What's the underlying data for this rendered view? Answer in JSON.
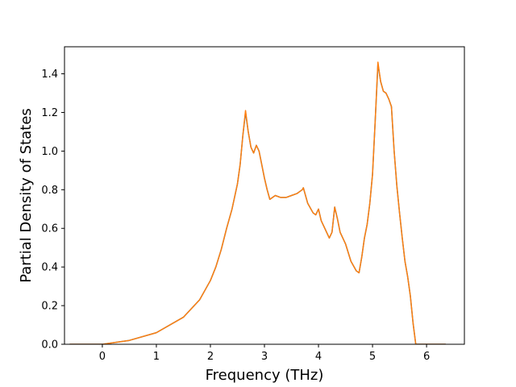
{
  "chart_data": {
    "type": "line",
    "title": "",
    "xlabel": "Frequency (THz)",
    "ylabel": "Partial Density of States",
    "xlim": [
      -0.7,
      6.7
    ],
    "ylim": [
      0.0,
      1.54
    ],
    "x_ticks": [
      "0",
      "1",
      "2",
      "3",
      "4",
      "5",
      "6"
    ],
    "y_ticks": [
      "0.0",
      "0.2",
      "0.4",
      "0.6",
      "0.8",
      "1.0",
      "1.2",
      "1.4"
    ],
    "grid": false,
    "legend": "none",
    "series": [
      {
        "color": "#1f77b4",
        "x": [
          -0.6,
          0.0,
          0.5,
          1.0,
          1.5,
          1.8,
          2.0,
          2.1,
          2.2,
          2.3,
          2.4,
          2.5,
          2.55,
          2.6,
          2.65,
          2.7,
          2.75,
          2.8,
          2.85,
          2.9,
          2.95,
          3.0,
          3.05,
          3.1,
          3.15,
          3.2,
          3.3,
          3.4,
          3.5,
          3.6,
          3.7,
          3.72,
          3.8,
          3.9,
          3.95,
          4.0,
          4.05,
          4.1,
          4.15,
          4.2,
          4.25,
          4.3,
          4.35,
          4.4,
          4.5,
          4.6,
          4.7,
          4.75,
          4.8,
          4.85,
          4.9,
          4.95,
          5.0,
          5.05,
          5.1,
          5.15,
          5.2,
          5.25,
          5.3,
          5.35,
          5.4,
          5.45,
          5.5,
          5.55,
          5.6,
          5.65,
          5.7,
          5.75,
          5.8,
          5.85,
          6.0,
          6.35
        ],
        "y": [
          0.0,
          0.0,
          0.02,
          0.06,
          0.14,
          0.23,
          0.33,
          0.4,
          0.49,
          0.6,
          0.7,
          0.83,
          0.93,
          1.08,
          1.2,
          1.1,
          1.02,
          0.99,
          1.03,
          1.0,
          0.93,
          0.86,
          0.8,
          0.75,
          0.76,
          0.77,
          0.76,
          0.76,
          0.77,
          0.78,
          0.8,
          0.81,
          0.73,
          0.68,
          0.67,
          0.7,
          0.64,
          0.61,
          0.58,
          0.55,
          0.58,
          0.71,
          0.65,
          0.58,
          0.52,
          0.43,
          0.38,
          0.37,
          0.45,
          0.55,
          0.62,
          0.73,
          0.88,
          1.16,
          1.45,
          1.36,
          1.31,
          1.3,
          1.27,
          1.23,
          1.0,
          0.82,
          0.68,
          0.55,
          0.43,
          0.35,
          0.25,
          0.11,
          0.0,
          0.0,
          0.0,
          0.0
        ]
      },
      {
        "color": "#ff7f0e",
        "x": [
          -0.6,
          0.0,
          0.5,
          1.0,
          1.5,
          1.8,
          2.0,
          2.1,
          2.2,
          2.3,
          2.4,
          2.5,
          2.55,
          2.6,
          2.65,
          2.7,
          2.75,
          2.8,
          2.85,
          2.9,
          2.95,
          3.0,
          3.05,
          3.1,
          3.15,
          3.2,
          3.3,
          3.4,
          3.5,
          3.6,
          3.7,
          3.72,
          3.8,
          3.9,
          3.95,
          4.0,
          4.05,
          4.1,
          4.15,
          4.2,
          4.25,
          4.3,
          4.35,
          4.4,
          4.5,
          4.6,
          4.7,
          4.75,
          4.8,
          4.85,
          4.9,
          4.95,
          5.0,
          5.05,
          5.1,
          5.15,
          5.2,
          5.25,
          5.3,
          5.35,
          5.4,
          5.45,
          5.5,
          5.55,
          5.6,
          5.65,
          5.7,
          5.75,
          5.8,
          5.85,
          6.0,
          6.35
        ],
        "y": [
          0.0,
          0.0,
          0.02,
          0.06,
          0.14,
          0.23,
          0.33,
          0.4,
          0.49,
          0.6,
          0.7,
          0.83,
          0.93,
          1.08,
          1.21,
          1.1,
          1.02,
          0.99,
          1.03,
          1.0,
          0.93,
          0.86,
          0.8,
          0.75,
          0.76,
          0.77,
          0.76,
          0.76,
          0.77,
          0.78,
          0.8,
          0.81,
          0.73,
          0.68,
          0.67,
          0.7,
          0.64,
          0.61,
          0.58,
          0.55,
          0.58,
          0.71,
          0.65,
          0.58,
          0.52,
          0.43,
          0.38,
          0.37,
          0.45,
          0.55,
          0.62,
          0.73,
          0.88,
          1.16,
          1.46,
          1.36,
          1.31,
          1.3,
          1.27,
          1.23,
          1.0,
          0.82,
          0.68,
          0.55,
          0.43,
          0.35,
          0.25,
          0.11,
          0.0,
          0.0,
          0.0,
          0.0
        ]
      }
    ]
  }
}
